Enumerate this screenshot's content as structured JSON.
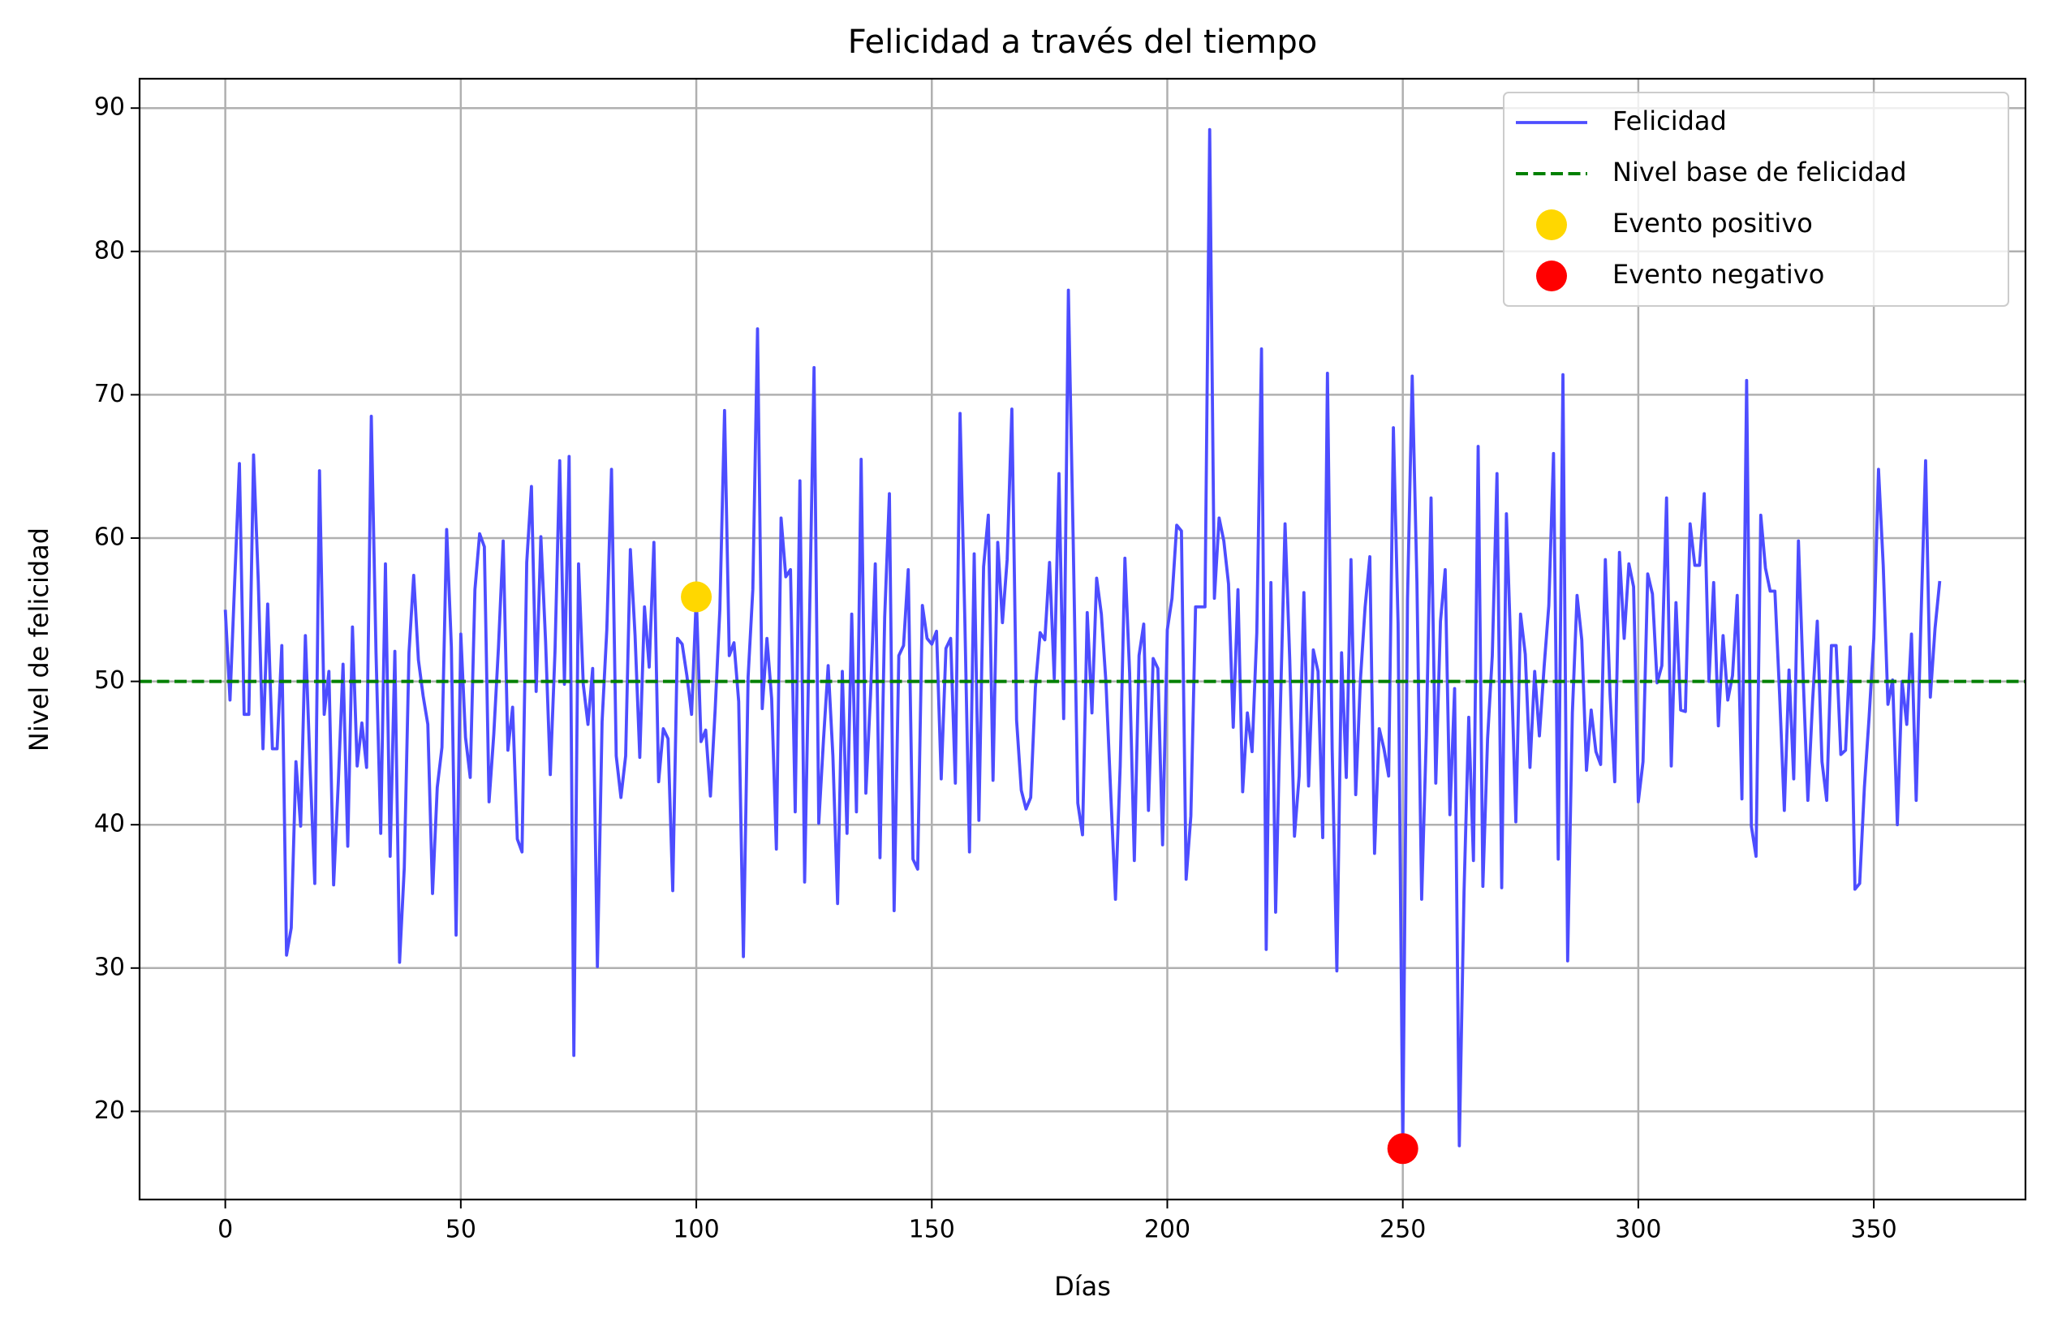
{
  "chart_data": {
    "type": "line",
    "title": "Felicidad a través del tiempo",
    "xlabel": "Días",
    "ylabel": "Nivel de felicidad",
    "x": [
      0,
      1,
      2,
      3,
      4,
      5,
      6,
      7,
      8,
      9,
      10,
      11,
      12,
      13,
      14,
      15,
      16,
      17,
      18,
      19,
      20,
      21,
      22,
      23,
      24,
      25,
      26,
      27,
      28,
      29,
      30,
      31,
      32,
      33,
      34,
      35,
      36,
      37,
      38,
      39,
      40,
      41,
      42,
      43,
      44,
      45,
      46,
      47,
      48,
      49,
      50,
      51,
      52,
      53,
      54,
      55,
      56,
      57,
      58,
      59,
      60,
      61,
      62,
      63,
      64,
      65,
      66,
      67,
      68,
      69,
      70,
      71,
      72,
      73,
      74,
      75,
      76,
      77,
      78,
      79,
      80,
      81,
      82,
      83,
      84,
      85,
      86,
      87,
      88,
      89,
      90,
      91,
      92,
      93,
      94,
      95,
      96,
      97,
      98,
      99,
      100,
      101,
      102,
      103,
      104,
      105,
      106,
      107,
      108,
      109,
      110,
      111,
      112,
      113,
      114,
      115,
      116,
      117,
      118,
      119,
      120,
      121,
      122,
      123,
      124,
      125,
      126,
      127,
      128,
      129,
      130,
      131,
      132,
      133,
      134,
      135,
      136,
      137,
      138,
      139,
      140,
      141,
      142,
      143,
      144,
      145,
      146,
      147,
      148,
      149,
      150,
      151,
      152,
      153,
      154,
      155,
      156,
      157,
      158,
      159,
      160,
      161,
      162,
      163,
      164,
      165,
      166,
      167,
      168,
      169,
      170,
      171,
      172,
      173,
      174,
      175,
      176,
      177,
      178,
      179,
      180,
      181,
      182,
      183,
      184,
      185,
      186,
      187,
      188,
      189,
      190,
      191,
      192,
      193,
      194,
      195,
      196,
      197,
      198,
      199,
      200,
      201,
      202,
      203,
      204,
      205,
      206,
      207,
      208,
      209,
      210,
      211,
      212,
      213,
      214,
      215,
      216,
      217,
      218,
      219,
      220,
      221,
      222,
      223,
      224,
      225,
      226,
      227,
      228,
      229,
      230,
      231,
      232,
      233,
      234,
      235,
      236,
      237,
      238,
      239,
      240,
      241,
      242,
      243,
      244,
      245,
      246,
      247,
      248,
      249,
      250,
      251,
      252,
      253,
      254,
      255,
      256,
      257,
      258,
      259,
      260,
      261,
      262,
      263,
      264,
      265,
      266,
      267,
      268,
      269,
      270,
      271,
      272,
      273,
      274,
      275,
      276,
      277,
      278,
      279,
      280,
      281,
      282,
      283,
      284,
      285,
      286,
      287,
      288,
      289,
      290,
      291,
      292,
      293,
      294,
      295,
      296,
      297,
      298,
      299,
      300,
      301,
      302,
      303,
      304,
      305,
      306,
      307,
      308,
      309,
      310,
      311,
      312,
      313,
      314,
      315,
      316,
      317,
      318,
      319,
      320,
      321,
      322,
      323,
      324,
      325,
      326,
      327,
      328,
      329,
      330,
      331,
      332,
      333,
      334,
      335,
      336,
      337,
      338,
      339,
      340,
      341,
      342,
      343,
      344,
      345,
      346,
      347,
      348,
      349,
      350,
      351,
      352,
      353,
      354,
      355,
      356,
      357,
      358,
      359,
      360,
      361,
      362,
      363,
      364
    ],
    "series": [
      {
        "name": "Felicidad",
        "color": "#4d4dff",
        "values": [
          55,
          48.7,
          57,
          65.2,
          47.7,
          47.7,
          65.8,
          57,
          45.3,
          55.4,
          45.3,
          45.3,
          52.5,
          30.9,
          32.8,
          44.4,
          39.9,
          53.2,
          44,
          35.9,
          64.7,
          47.7,
          50.7,
          35.8,
          43,
          51.2,
          38.5,
          53.8,
          44.1,
          47.1,
          44,
          68.5,
          52,
          39.4,
          58.2,
          37.8,
          52.1,
          30.4,
          37,
          52,
          57.4,
          51.5,
          49,
          47,
          35.2,
          42.6,
          45.4,
          60.6,
          52.4,
          32.3,
          53.3,
          46.1,
          43.3,
          56.4,
          60.3,
          59.4,
          41.6,
          46.3,
          52.4,
          59.8,
          45.2,
          48.2,
          39,
          38.1,
          58.3,
          63.6,
          49.3,
          60.1,
          52.8,
          43.5,
          52.1,
          65.4,
          49.8,
          65.7,
          23.9,
          58.2,
          49.8,
          47,
          50.9,
          30.1,
          47.2,
          53.6,
          64.8,
          44.8,
          41.9,
          44.8,
          59.2,
          53.2,
          44.7,
          55.2,
          51,
          59.7,
          43,
          46.7,
          46,
          35.4,
          53,
          52.6,
          50.4,
          47.7,
          55.9,
          45.8,
          46.6,
          42,
          48,
          55,
          68.9,
          51.8,
          52.7,
          48.6,
          30.8,
          50.3,
          56.4,
          74.6,
          48.1,
          53,
          48.8,
          38.3,
          61.4,
          57.3,
          57.8,
          40.9,
          64,
          36,
          53.6,
          71.9,
          40.1,
          45.9,
          51.1,
          44.8,
          34.5,
          50.7,
          39.4,
          54.7,
          40.9,
          65.5,
          42.2,
          49.1,
          58.2,
          37.7,
          54.5,
          63.1,
          34,
          51.8,
          52.5,
          57.8,
          37.6,
          36.9,
          55.3,
          53,
          52.6,
          53.5,
          43.2,
          52.3,
          53,
          42.9,
          68.7,
          54.5,
          38.1,
          58.9,
          40.3,
          58,
          61.6,
          43.1,
          59.7,
          54.1,
          58.5,
          69,
          47.3,
          42.4,
          41.1,
          41.9,
          49.6,
          53.4,
          52.9,
          58.3,
          50.2,
          64.5,
          47.4,
          77.3,
          60.2,
          41.5,
          39.3,
          54.8,
          47.8,
          57.2,
          54.7,
          49.8,
          42.1,
          34.8,
          44.1,
          58.6,
          50.6,
          37.5,
          51.8,
          54,
          41,
          51.6,
          50.9,
          38.6,
          53.6,
          55.8,
          60.9,
          60.5,
          36.2,
          40.6,
          55.2,
          55.2,
          55.2,
          88.5,
          55.8,
          61.4,
          59.8,
          56.8,
          46.8,
          56.4,
          42.3,
          47.8,
          45.1,
          53.4,
          73.2,
          31.3,
          56.9,
          33.9,
          48,
          61,
          51.5,
          39.2,
          43.4,
          56.2,
          42.7,
          52.2,
          50.7,
          39.1,
          71.5,
          45.3,
          29.8,
          52,
          43.3,
          58.5,
          42.1,
          50.1,
          55.2,
          58.7,
          38,
          46.7,
          45.3,
          43.4,
          67.7,
          54,
          17.4,
          55.7,
          71.3,
          56.9,
          34.8,
          46.3,
          62.8,
          42.9,
          54.2,
          57.8,
          40.7,
          49.5,
          17.6,
          35.3,
          47.5,
          37.5,
          66.4,
          35.7,
          46,
          51.8,
          64.5,
          35.6,
          61.7,
          51.5,
          40.2,
          54.7,
          51.9,
          44,
          50.7,
          46.2,
          51,
          55.3,
          65.9,
          37.6,
          71.4,
          30.5,
          47.8,
          56,
          52.9,
          43.8,
          48,
          45.1,
          44.2,
          58.5,
          49.1,
          43,
          59,
          53,
          58.2,
          56.6,
          41.6,
          44.4,
          57.5,
          56.1,
          49.9,
          51.1,
          62.8,
          44.1,
          55.5,
          48,
          47.9,
          61,
          58.1,
          58.1,
          63.1,
          50,
          56.9,
          46.9,
          53.2,
          48.7,
          50.4,
          56,
          41.8,
          71,
          39.9,
          37.8,
          61.6,
          57.9,
          56.3,
          56.3,
          49.1,
          41,
          50.8,
          43.2,
          59.8,
          50.3,
          41.7,
          48.6,
          54.2,
          44.4,
          41.7,
          52.5,
          52.5,
          44.9,
          45.2,
          52.4,
          35.5,
          35.9,
          42.6,
          47.5,
          53,
          64.8,
          58.1,
          48.4,
          50.1,
          40,
          50,
          47,
          53.3,
          41.7,
          54.2,
          65.4,
          48.9,
          53.7,
          57
        ]
      }
    ],
    "baseline": {
      "name": "Nivel base de felicidad",
      "value": 50,
      "color": "#008000"
    },
    "events": [
      {
        "name": "Evento positivo",
        "x": 100,
        "y": 55.9,
        "color": "#ffd700"
      },
      {
        "name": "Evento negativo",
        "x": 250,
        "y": 17.4,
        "color": "#ff0000"
      }
    ],
    "xlim": [
      -18.2,
      382.2
    ],
    "xticks": [
      0,
      50,
      100,
      150,
      200,
      250,
      300,
      350
    ],
    "ylim": [
      13.85,
      92.05
    ],
    "yticks": [
      20,
      30,
      40,
      50,
      60,
      70,
      80,
      90
    ],
    "grid": true,
    "legend": "upper right"
  }
}
